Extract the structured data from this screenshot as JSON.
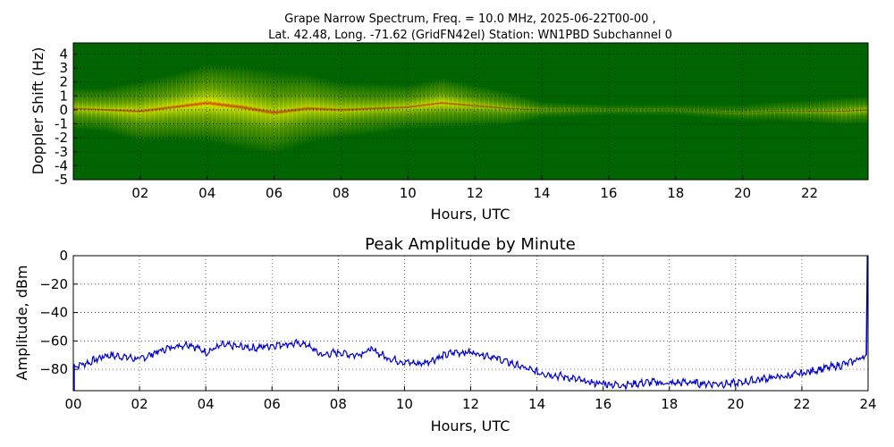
{
  "chart_data": [
    {
      "type": "heatmap",
      "title_line1": "Grape Narrow Spectrum, Freq. = 10.0 MHz, 2025-06-22T00-00 ,",
      "title_line2": "Lat.  42.48, Long. -71.62 (GridFN42el) Station: WN1PBD Subchannel 0",
      "xlabel": "Hours, UTC",
      "ylabel": "Doppler Shift (Hz)",
      "xlim": [
        0,
        23.75
      ],
      "ylim": [
        -5,
        5
      ],
      "x_ticks": [
        2,
        4,
        6,
        8,
        10,
        12,
        14,
        16,
        18,
        20,
        22
      ],
      "x_tick_labels": [
        "02",
        "04",
        "06",
        "08",
        "10",
        "12",
        "14",
        "16",
        "18",
        "20",
        "22"
      ],
      "y_ticks": [
        4,
        3,
        2,
        1,
        0,
        -1,
        -2,
        -3,
        -4,
        -5
      ],
      "y_tick_labels": [
        "4",
        "3",
        "2",
        "1",
        "0",
        "-1",
        "-2",
        "-3",
        "-4",
        "-5"
      ],
      "grid": true,
      "colors": {
        "background": "#006400",
        "mid": "#c8d800",
        "high": "#ffff00",
        "peak": "#ff4000"
      },
      "trace": {
        "hours": [
          0,
          1,
          2,
          3,
          4,
          5,
          6,
          7,
          8,
          9,
          10,
          11,
          12,
          13,
          14,
          15,
          16,
          17,
          18,
          19,
          20,
          21,
          22,
          23,
          23.75
        ],
        "center_hz": [
          0.1,
          0.0,
          -0.1,
          0.2,
          0.5,
          0.2,
          -0.2,
          0.1,
          0.0,
          0.1,
          0.2,
          0.5,
          0.3,
          0.1,
          0.0,
          0.0,
          0.0,
          0.0,
          0.0,
          -0.1,
          -0.2,
          -0.1,
          -0.1,
          -0.1,
          0.0
        ],
        "spread_hz": [
          1.5,
          1.6,
          2.2,
          2.4,
          2.8,
          3.0,
          3.0,
          2.5,
          2.0,
          1.8,
          1.6,
          1.8,
          1.5,
          1.2,
          0.6,
          0.5,
          0.4,
          0.4,
          0.4,
          0.5,
          0.6,
          0.7,
          0.8,
          1.0,
          1.0
        ],
        "intensity": [
          0.6,
          0.65,
          0.7,
          0.75,
          0.85,
          0.75,
          0.7,
          0.7,
          0.65,
          0.6,
          0.65,
          0.75,
          0.6,
          0.5,
          0.35,
          0.3,
          0.25,
          0.25,
          0.25,
          0.25,
          0.3,
          0.35,
          0.4,
          0.5,
          0.5
        ]
      }
    },
    {
      "type": "line",
      "title": "Peak Amplitude by Minute",
      "xlabel": "Hours, UTC",
      "ylabel": "Amplitude, dBm",
      "xlim": [
        0,
        24
      ],
      "ylim": [
        -95,
        0
      ],
      "x_ticks": [
        0,
        2,
        4,
        6,
        8,
        10,
        12,
        14,
        16,
        18,
        20,
        22,
        24
      ],
      "x_tick_labels": [
        "00",
        "02",
        "04",
        "06",
        "08",
        "10",
        "12",
        "14",
        "16",
        "18",
        "20",
        "22",
        "24"
      ],
      "y_ticks": [
        0,
        -20,
        -40,
        -60,
        -80
      ],
      "y_tick_labels": [
        "0",
        "−20",
        "−40",
        "−60",
        "−80"
      ],
      "grid": true,
      "line_color": "#0000cc",
      "series": [
        {
          "name": "Peak Amplitude",
          "x": [
            0,
            0.5,
            1,
            1.5,
            2,
            2.5,
            3,
            3.5,
            4,
            4.5,
            5,
            5.5,
            6,
            6.5,
            7,
            7.5,
            8,
            8.5,
            9,
            9.5,
            10,
            10.5,
            11,
            11.5,
            12,
            12.5,
            13,
            13.5,
            14,
            14.5,
            15,
            15.5,
            16,
            16.5,
            17,
            17.5,
            18,
            18.5,
            19,
            19.5,
            20,
            20.5,
            21,
            21.5,
            22,
            22.5,
            23,
            23.5,
            23.95
          ],
          "y": [
            -78,
            -75,
            -70,
            -71,
            -73,
            -68,
            -64,
            -62,
            -68,
            -63,
            -64,
            -65,
            -63,
            -62,
            -62,
            -70,
            -68,
            -70,
            -66,
            -72,
            -75,
            -76,
            -72,
            -68,
            -68,
            -70,
            -74,
            -78,
            -82,
            -84,
            -86,
            -89,
            -90,
            -91,
            -90,
            -89,
            -90,
            -89,
            -90,
            -90,
            -90,
            -88,
            -86,
            -85,
            -83,
            -80,
            -78,
            -75,
            -70
          ],
          "spike_x": [
            0,
            24
          ],
          "spike_y": [
            -95,
            0
          ]
        }
      ]
    }
  ]
}
